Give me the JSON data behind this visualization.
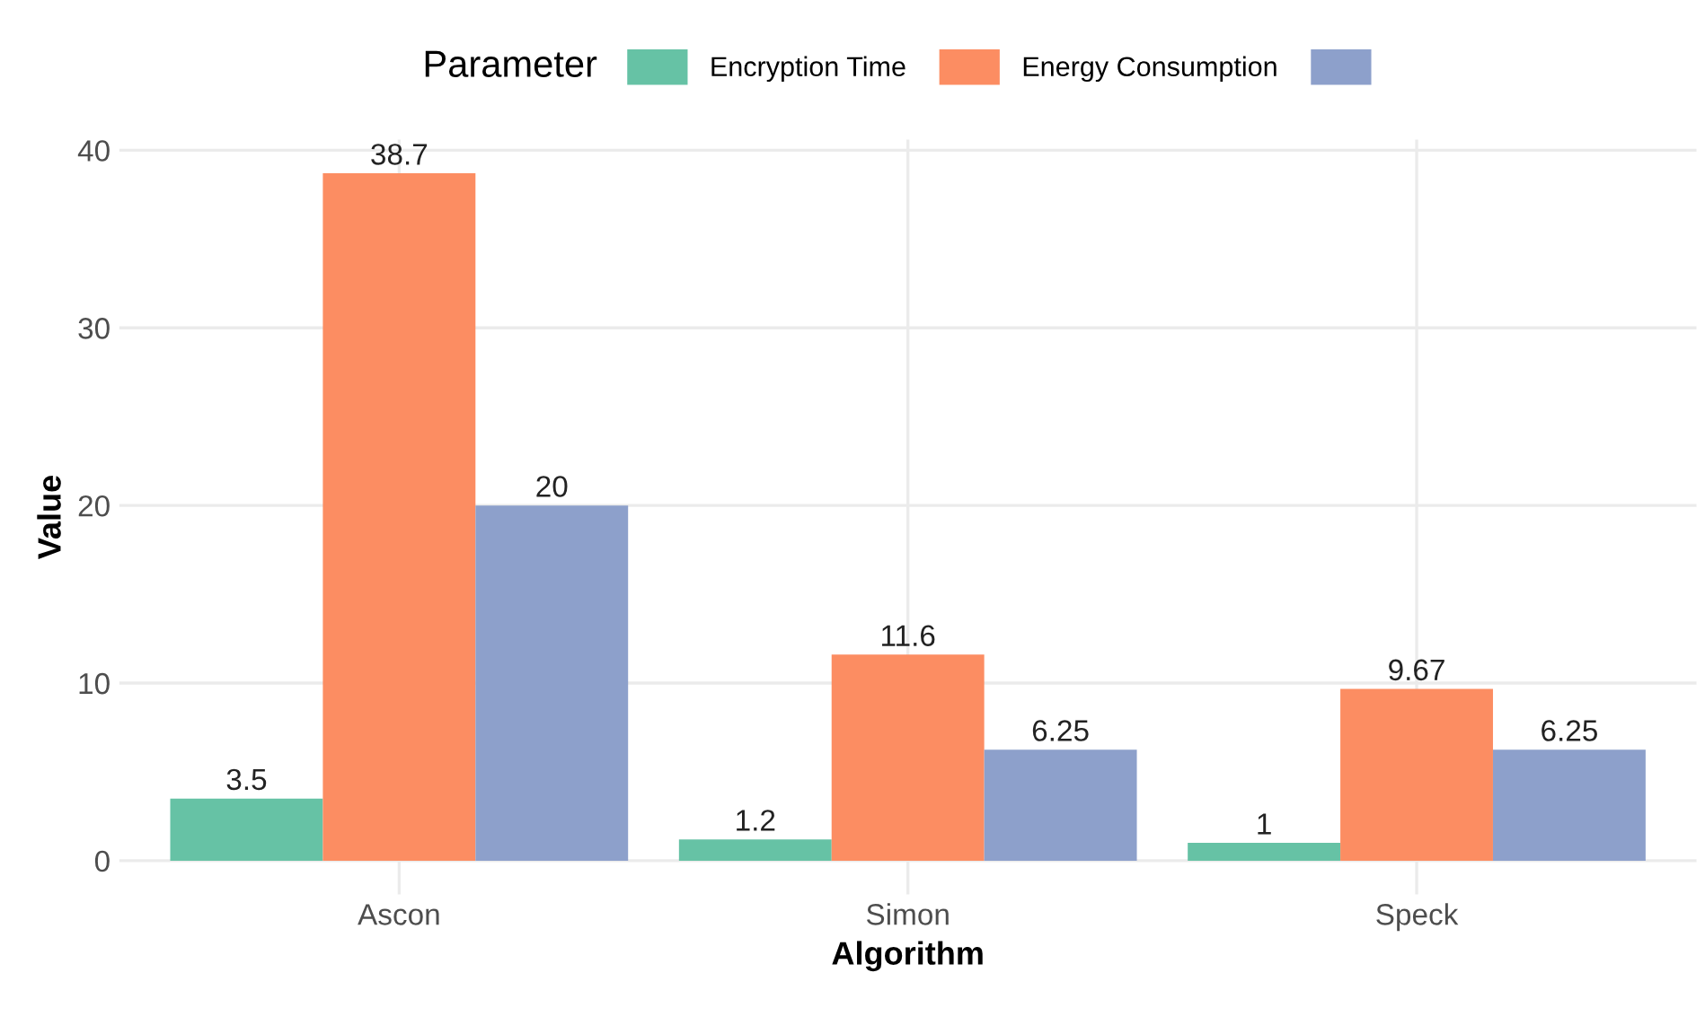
{
  "chart_data": {
    "type": "bar",
    "xlabel": "Algorithm",
    "ylabel": "Value",
    "legend_title": "Parameter",
    "categories": [
      "Ascon",
      "Simon",
      "Speck"
    ],
    "series": [
      {
        "name": "Encryption Time",
        "color": "#66c2a5",
        "values": [
          3.5,
          1.2,
          1
        ]
      },
      {
        "name": "Energy Consumption",
        "color": "#fc8d62",
        "values": [
          38.7,
          11.6,
          9.67
        ]
      },
      {
        "color": "#8da0cb",
        "values": [
          20,
          6.25,
          6.25
        ]
      }
    ],
    "ylim": [
      -1.9,
      40.6
    ],
    "yticks": [
      0,
      10,
      20,
      30,
      40
    ],
    "grid": true,
    "legend": "top",
    "data_labels": true
  }
}
